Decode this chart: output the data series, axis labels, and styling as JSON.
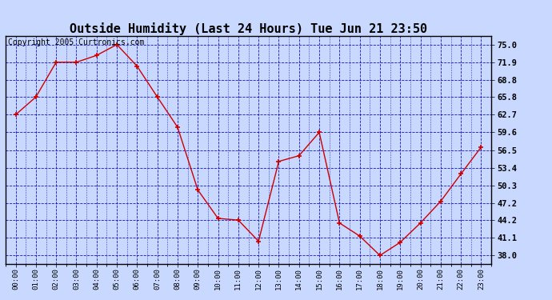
{
  "title": "Outside Humidity (Last 24 Hours) Tue Jun 21 23:50",
  "copyright": "Copyright 2005 Curtronics.com",
  "x_labels": [
    "00:00",
    "01:00",
    "02:00",
    "03:00",
    "04:00",
    "05:00",
    "06:00",
    "07:00",
    "08:00",
    "09:00",
    "10:00",
    "11:00",
    "12:00",
    "13:00",
    "14:00",
    "15:00",
    "16:00",
    "17:00",
    "18:00",
    "19:00",
    "20:00",
    "21:00",
    "22:00",
    "23:00"
  ],
  "x_values": [
    0,
    1,
    2,
    3,
    4,
    5,
    6,
    7,
    8,
    9,
    10,
    11,
    12,
    13,
    14,
    15,
    16,
    17,
    18,
    19,
    20,
    21,
    22,
    23
  ],
  "y_values": [
    62.7,
    65.8,
    71.9,
    71.9,
    73.1,
    75.0,
    71.2,
    65.8,
    60.5,
    49.5,
    44.5,
    44.2,
    40.5,
    54.5,
    55.5,
    59.6,
    43.7,
    41.4,
    38.0,
    40.3,
    43.7,
    47.5,
    52.3,
    57.0
  ],
  "y_ticks": [
    38.0,
    41.1,
    44.2,
    47.2,
    50.3,
    53.4,
    56.5,
    59.6,
    62.7,
    65.8,
    68.8,
    71.9,
    75.0
  ],
  "y_tick_labels": [
    "38.0",
    "41.1",
    "44.2",
    "47.2",
    "50.3",
    "53.4",
    "56.5",
    "59.6",
    "62.7",
    "65.8",
    "68.8",
    "71.9",
    "75.0"
  ],
  "ylim": [
    36.5,
    76.5
  ],
  "line_color": "#cc0000",
  "marker_color": "#cc0000",
  "bg_color": "#c8d8ff",
  "plot_bg": "#c8d8ff",
  "grid_color": "#0000bb",
  "border_color": "#000000",
  "title_fontsize": 11,
  "copyright_fontsize": 7
}
